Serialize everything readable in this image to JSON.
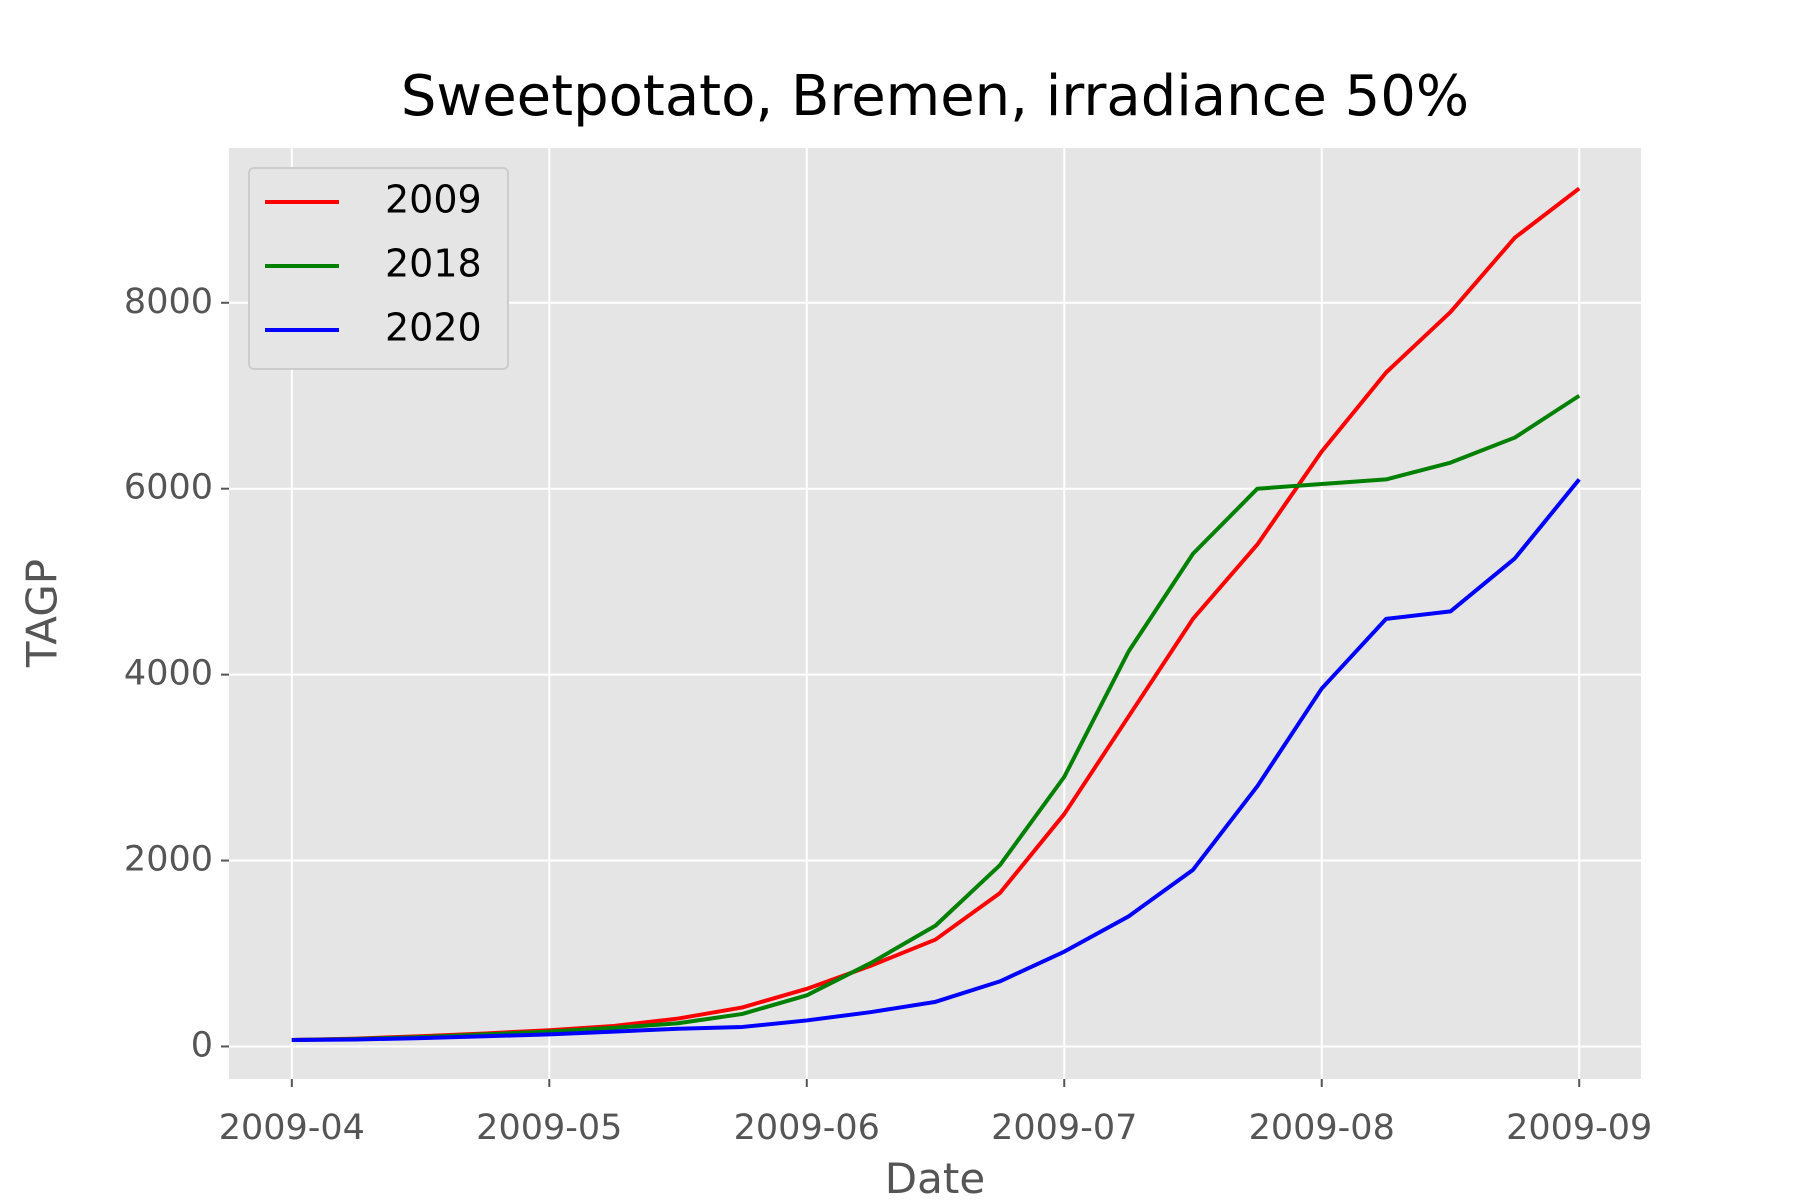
{
  "chart_data": {
    "type": "line",
    "title": "Sweetpotato, Bremen, irradiance 50%",
    "xlabel": "Date",
    "ylabel": "TAGP",
    "x": [
      0,
      0.25,
      0.5,
      0.75,
      1,
      1.25,
      1.5,
      1.75,
      2,
      2.25,
      2.5,
      2.75,
      3,
      3.25,
      3.5,
      3.75,
      4,
      4.25,
      4.5,
      4.75,
      5
    ],
    "series": [
      {
        "name": "2009",
        "color": "#ff0000",
        "values": [
          70,
          85,
          110,
          140,
          175,
          220,
          300,
          420,
          620,
          870,
          1150,
          1650,
          2500,
          3550,
          4600,
          5400,
          6400,
          7250,
          7900,
          8700,
          9230
        ]
      },
      {
        "name": "2018",
        "color": "#008000",
        "values": [
          70,
          80,
          100,
          130,
          160,
          200,
          250,
          350,
          550,
          900,
          1300,
          1950,
          2900,
          4250,
          5300,
          6000,
          6050,
          6100,
          6280,
          6550,
          7000
        ]
      },
      {
        "name": "2020",
        "color": "#0000ff",
        "values": [
          70,
          75,
          90,
          110,
          130,
          160,
          190,
          210,
          280,
          370,
          480,
          700,
          1020,
          1400,
          1900,
          2800,
          3850,
          4600,
          4680,
          5250,
          6100
        ]
      }
    ],
    "xlim": [
      -0.244,
      5.24
    ],
    "xticks": [
      {
        "value": 0,
        "label": "2009-04"
      },
      {
        "value": 1,
        "label": "2009-05"
      },
      {
        "value": 2,
        "label": "2009-06"
      },
      {
        "value": 3,
        "label": "2009-07"
      },
      {
        "value": 4,
        "label": "2009-08"
      },
      {
        "value": 5,
        "label": "2009-09"
      }
    ],
    "ylim": [
      -350,
      9665
    ],
    "yticks": [
      0,
      2000,
      4000,
      6000,
      8000
    ],
    "grid": true,
    "legend": "upper left"
  }
}
